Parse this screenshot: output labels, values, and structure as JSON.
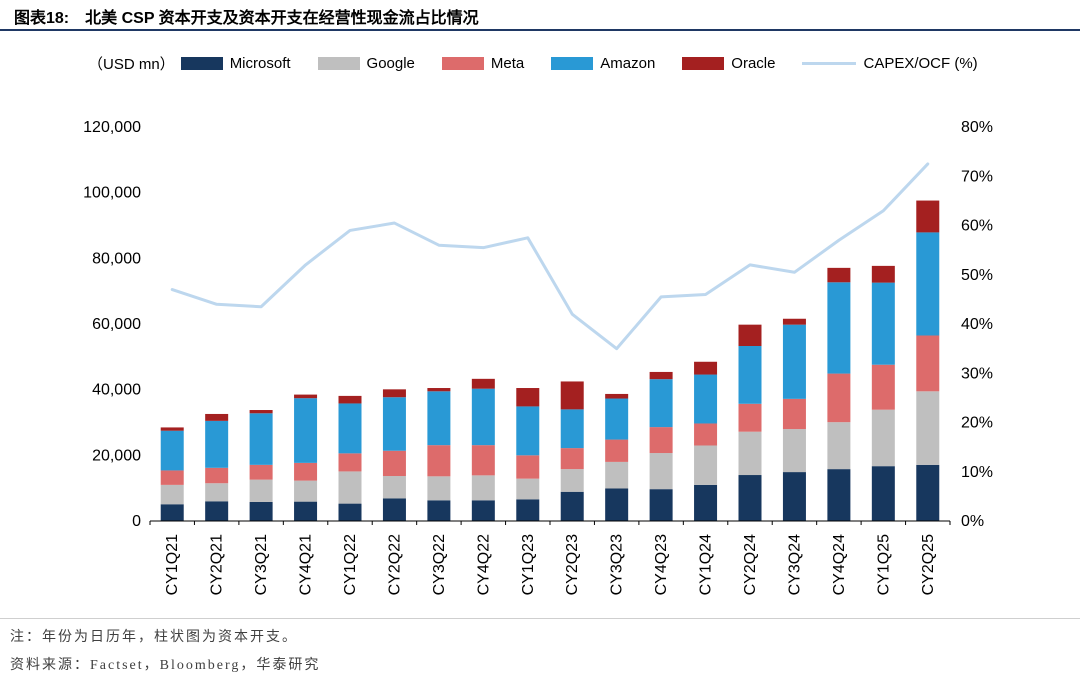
{
  "header": {
    "label": "图表18:",
    "title": "北美 CSP 资本开支及资本开支在经营性现金流占比情况"
  },
  "legend": {
    "unit_label": "（USD mn）",
    "position": "top"
  },
  "chart_data": {
    "type": "bar",
    "subtype": "stacked-bar-with-line",
    "title": "北美 CSP 资本开支及资本开支在经营性现金流占比情况",
    "unit": "USD mn",
    "categories": [
      "CY1Q21",
      "CY2Q21",
      "CY3Q21",
      "CY4Q21",
      "CY1Q22",
      "CY2Q22",
      "CY3Q22",
      "CY4Q22",
      "CY1Q23",
      "CY2Q23",
      "CY3Q23",
      "CY4Q23",
      "CY1Q24",
      "CY2Q24",
      "CY3Q24",
      "CY4Q24",
      "CY1Q25",
      "CY2Q25"
    ],
    "series": [
      {
        "name": "Microsoft",
        "color": "#17375E",
        "values": [
          5100,
          6000,
          5800,
          5900,
          5300,
          6900,
          6300,
          6300,
          6600,
          8900,
          9900,
          9700,
          11000,
          14000,
          14900,
          15800,
          16700,
          17100
        ]
      },
      {
        "name": "Google",
        "color": "#BFBFBF",
        "values": [
          5900,
          5500,
          6800,
          6400,
          9800,
          6800,
          7300,
          7600,
          6300,
          6900,
          8100,
          11000,
          12000,
          13200,
          13100,
          14300,
          17200,
          22400
        ]
      },
      {
        "name": "Meta",
        "color": "#DD6B6B",
        "values": [
          4400,
          4700,
          4500,
          5400,
          5500,
          7700,
          9500,
          9200,
          7100,
          6400,
          6800,
          7900,
          6700,
          8500,
          9200,
          14800,
          13700,
          17000
        ]
      },
      {
        "name": "Amazon",
        "color": "#2999D5",
        "values": [
          12100,
          14300,
          15700,
          19700,
          15200,
          16300,
          16400,
          17200,
          14900,
          11800,
          12500,
          14600,
          14900,
          17600,
          22600,
          27800,
          25000,
          31400
        ]
      },
      {
        "name": "Oracle",
        "color": "#A42020",
        "values": [
          1000,
          2100,
          1000,
          1100,
          2300,
          2400,
          1000,
          3000,
          5600,
          8500,
          1400,
          2200,
          3900,
          6500,
          1800,
          4400,
          5100,
          9700
        ]
      }
    ],
    "line_series": {
      "name": "CAPEX/OCF (%)",
      "color": "#BDD7EE",
      "values": [
        47,
        44,
        43.5,
        52,
        59,
        60.5,
        56,
        55.5,
        57.5,
        42,
        35,
        45.5,
        46,
        52,
        50.5,
        57,
        63,
        72.5
      ]
    },
    "left_axis": {
      "min": 0,
      "max": 120000,
      "step": 20000
    },
    "right_axis": {
      "min": 0,
      "max": 80,
      "step": 10,
      "suffix": "%"
    },
    "grid": "off",
    "legend_position": "top"
  },
  "notes": {
    "note1": "注：年份为日历年，柱状图为资本开支。",
    "source": "资料来源：Factset，Bloomberg，华泰研究"
  }
}
